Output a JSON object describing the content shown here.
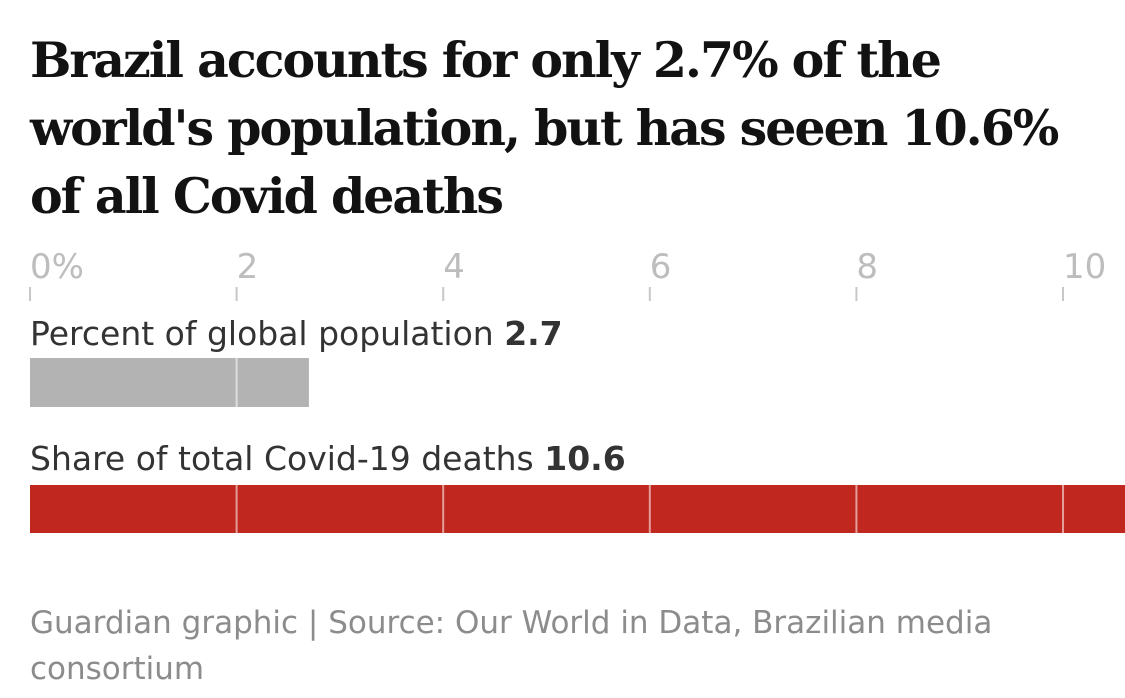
{
  "chart_data": {
    "type": "bar",
    "orientation": "horizontal",
    "title": "Brazil accounts for only 2.7% of the world's population, but has seeen 10.6% of all Covid deaths",
    "xlim": [
      0,
      10.6
    ],
    "ticks": [
      {
        "value": 0,
        "label": "0%"
      },
      {
        "value": 2,
        "label": "2"
      },
      {
        "value": 4,
        "label": "4"
      },
      {
        "value": 6,
        "label": "6"
      },
      {
        "value": 8,
        "label": "8"
      },
      {
        "value": 10,
        "label": "10"
      }
    ],
    "categories": [
      "Percent of global population",
      "Share of total Covid-19 deaths"
    ],
    "values": [
      2.7,
      10.6
    ],
    "value_labels": [
      "2.7",
      "10.6"
    ],
    "colors": [
      "#b3b3b3",
      "#c0281f"
    ],
    "grid": true,
    "legend": "none"
  },
  "footer": {
    "source": "Guardian graphic | Source: Our World in Data, Brazilian media consortium"
  }
}
